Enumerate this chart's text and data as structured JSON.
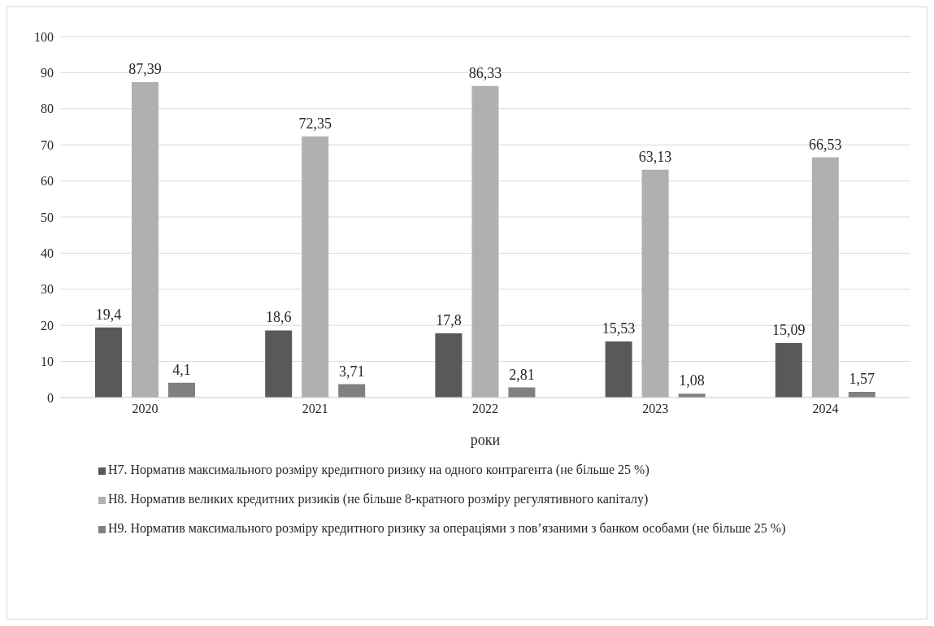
{
  "chart_data": {
    "type": "bar",
    "xlabel": "роки",
    "categories": [
      "2020",
      "2021",
      "2022",
      "2023",
      "2024"
    ],
    "series": [
      {
        "name": "Н7. Норматив максимального розміру кредитного ризику на одного контрагента (не більше 25 %)",
        "color": "#595959",
        "values": [
          19.4,
          18.6,
          17.8,
          15.53,
          15.09
        ],
        "value_labels": [
          "19,4",
          "18,6",
          "17,8",
          "15,53",
          "15,09"
        ]
      },
      {
        "name": "Н8. Норматив великих кредитних ризиків (не більше 8-кратного розміру регулятивного капіталу)",
        "color": "#b0b0b0",
        "values": [
          87.39,
          72.35,
          86.33,
          63.13,
          66.53
        ],
        "value_labels": [
          "87,39",
          "72,35",
          "86,33",
          "63,13",
          "66,53"
        ]
      },
      {
        "name": "Н9. Норматив максимального розміру кредитного ризику за операціями з пов’язаними з банком особами (не більше 25 %)",
        "color": "#808080",
        "values": [
          4.1,
          3.71,
          2.81,
          1.08,
          1.57
        ],
        "value_labels": [
          "4,1",
          "3,71",
          "2,81",
          "1,08",
          "1,57"
        ]
      }
    ],
    "ylim": [
      0,
      100
    ],
    "yticks": [
      0,
      10,
      20,
      30,
      40,
      50,
      60,
      70,
      80,
      90,
      100
    ],
    "grid": "y",
    "legend": "bottom"
  }
}
